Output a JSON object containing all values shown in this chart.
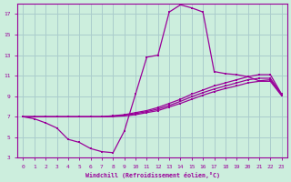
{
  "xlabel": "Windchill (Refroidissement éolien,°C)",
  "background_color": "#cceedd",
  "grid_color": "#aacccc",
  "line_color": "#990099",
  "xlim": [
    -0.5,
    23.5
  ],
  "ylim": [
    3,
    18
  ],
  "xticks": [
    0,
    1,
    2,
    3,
    4,
    5,
    6,
    7,
    8,
    9,
    10,
    11,
    12,
    13,
    14,
    15,
    16,
    17,
    18,
    19,
    20,
    21,
    22,
    23
  ],
  "yticks": [
    3,
    5,
    7,
    9,
    11,
    13,
    15,
    17
  ],
  "curve1_x": [
    0,
    1,
    2,
    3,
    4,
    5,
    6,
    7,
    8,
    9,
    10,
    11,
    12,
    13,
    14,
    15,
    16,
    17,
    18,
    19,
    20,
    21,
    22,
    23
  ],
  "curve1_y": [
    7.0,
    6.8,
    6.4,
    5.9,
    4.8,
    4.5,
    3.9,
    3.6,
    3.5,
    5.6,
    9.2,
    12.8,
    13.0,
    17.2,
    17.9,
    17.6,
    17.2,
    11.4,
    11.2,
    11.1,
    10.9,
    10.5,
    10.6,
    9.1
  ],
  "curve2_x": [
    0,
    1,
    2,
    3,
    4,
    5,
    6,
    7,
    8,
    9,
    10,
    11,
    12,
    13,
    14,
    15,
    16,
    17,
    18,
    19,
    20,
    21,
    22,
    23
  ],
  "curve2_y": [
    7.0,
    7.0,
    7.0,
    7.0,
    7.0,
    7.0,
    7.0,
    7.0,
    7.1,
    7.2,
    7.4,
    7.6,
    7.9,
    8.3,
    8.7,
    9.2,
    9.6,
    10.0,
    10.3,
    10.6,
    10.9,
    11.1,
    11.1,
    9.2
  ],
  "curve3_x": [
    0,
    1,
    2,
    3,
    4,
    5,
    6,
    7,
    8,
    9,
    10,
    11,
    12,
    13,
    14,
    15,
    16,
    17,
    18,
    19,
    20,
    21,
    22,
    23
  ],
  "curve3_y": [
    7.0,
    7.0,
    7.0,
    7.0,
    7.0,
    7.0,
    7.0,
    7.0,
    7.05,
    7.15,
    7.3,
    7.5,
    7.75,
    8.1,
    8.5,
    8.95,
    9.35,
    9.7,
    10.0,
    10.3,
    10.6,
    10.75,
    10.75,
    9.15
  ],
  "curve4_x": [
    0,
    1,
    2,
    3,
    4,
    5,
    6,
    7,
    8,
    9,
    10,
    11,
    12,
    13,
    14,
    15,
    16,
    17,
    18,
    19,
    20,
    21,
    22,
    23
  ],
  "curve4_y": [
    7.0,
    7.0,
    7.0,
    7.0,
    7.0,
    7.0,
    7.0,
    7.0,
    7.02,
    7.08,
    7.2,
    7.4,
    7.6,
    7.95,
    8.3,
    8.7,
    9.1,
    9.45,
    9.75,
    10.0,
    10.3,
    10.45,
    10.45,
    9.05
  ]
}
